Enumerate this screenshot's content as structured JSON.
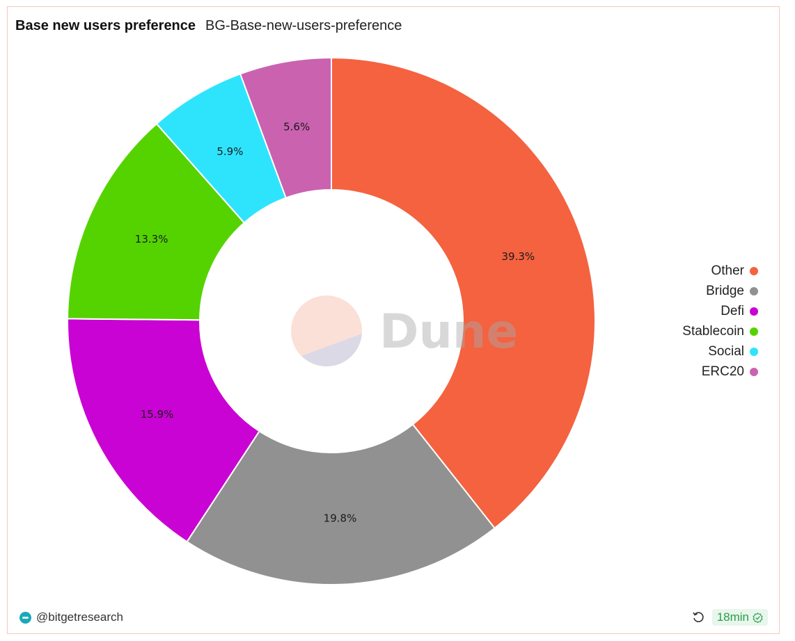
{
  "header": {
    "title": "Base new users preference",
    "subtitle": "BG-Base-new-users-preference"
  },
  "watermark": {
    "text": "Dune"
  },
  "footer": {
    "author": "@bitgetresearch",
    "refresh_age": "18min"
  },
  "chart_data": {
    "type": "pie",
    "variant": "donut",
    "title": "Base new users preference",
    "legend_position": "right",
    "categories": [
      "Other",
      "Bridge",
      "Defi",
      "Stablecoin",
      "Social",
      "ERC20"
    ],
    "values": [
      39.3,
      19.8,
      15.9,
      13.3,
      5.9,
      5.6
    ],
    "labels": [
      "39.3%",
      "19.8%",
      "15.9%",
      "13.3%",
      "5.9%",
      "5.6%"
    ],
    "colors": [
      "#f46240",
      "#919191",
      "#c903d3",
      "#55d300",
      "#2ee4fd",
      "#ca62b0"
    ]
  }
}
